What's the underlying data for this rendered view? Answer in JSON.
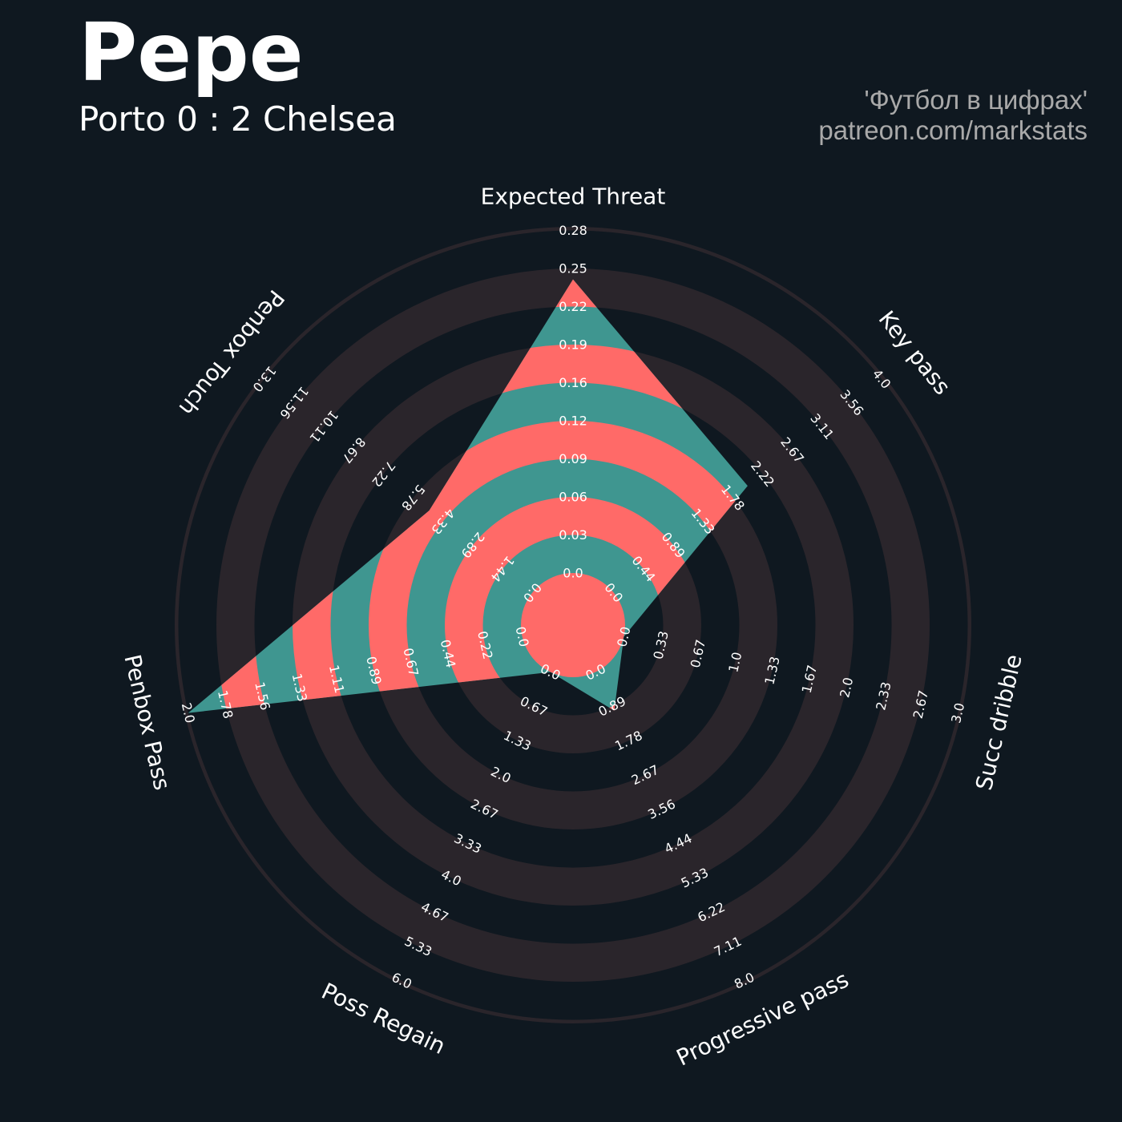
{
  "header": {
    "player": "Pepe",
    "match": "Porto 0 : 2 Chelsea"
  },
  "credit": {
    "line1": "'Футбол в цифрах'",
    "line2": "patreon.com/markstats"
  },
  "colors": {
    "background": "#0f1820",
    "ring_band": "#2a252b",
    "fill_teal": "#3f9690",
    "fill_red": "#ff6a68"
  },
  "chart_data": {
    "type": "radar",
    "title": "Pepe",
    "subtitle": "Porto 0 : 2 Chelsea",
    "params": [
      {
        "label": "Expected Threat",
        "min": 0.0,
        "max": 0.28,
        "value": 0.24,
        "ticks": [
          "0.0",
          "0.03",
          "0.06",
          "0.09",
          "0.12",
          "0.16",
          "0.19",
          "0.22",
          "0.25",
          "0.28"
        ]
      },
      {
        "label": "Key pass",
        "min": 0.0,
        "max": 4.0,
        "value": 2.0,
        "ticks": [
          "0.0",
          "0.44",
          "0.89",
          "1.33",
          "1.78",
          "2.22",
          "2.67",
          "3.11",
          "3.56",
          "4.0"
        ]
      },
      {
        "label": "Succ dribble",
        "min": 0.0,
        "max": 3.0,
        "value": 0.0,
        "ticks": [
          "0.0",
          "0.33",
          "0.67",
          "1.0",
          "1.33",
          "1.67",
          "2.0",
          "2.33",
          "2.67",
          "3.0"
        ]
      },
      {
        "label": "Progressive pass",
        "min": 0.0,
        "max": 8.0,
        "value": 1.0,
        "ticks": [
          "0.0",
          "0.89",
          "1.78",
          "2.67",
          "3.56",
          "4.44",
          "5.33",
          "6.22",
          "7.11",
          "8.0"
        ]
      },
      {
        "label": "Poss Regain",
        "min": 0.0,
        "max": 6.0,
        "value": 0.0,
        "ticks": [
          "0.0",
          "0.67",
          "1.33",
          "2.0",
          "2.67",
          "3.33",
          "4.0",
          "4.67",
          "5.33",
          "6.0"
        ]
      },
      {
        "label": "Penbox Pass",
        "min": 0.0,
        "max": 2.0,
        "value": 2.0,
        "ticks": [
          "0.0",
          "0.22",
          "0.44",
          "0.67",
          "0.89",
          "1.11",
          "1.33",
          "1.56",
          "1.78",
          "2.0"
        ]
      },
      {
        "label": "Penbox Touch",
        "min": 0.0,
        "max": 13.0,
        "value": 5.0,
        "ticks": [
          "0.0",
          "1.44",
          "2.89",
          "4.33",
          "5.78",
          "7.22",
          "8.67",
          "10.11",
          "11.56",
          "13.0"
        ]
      }
    ]
  }
}
